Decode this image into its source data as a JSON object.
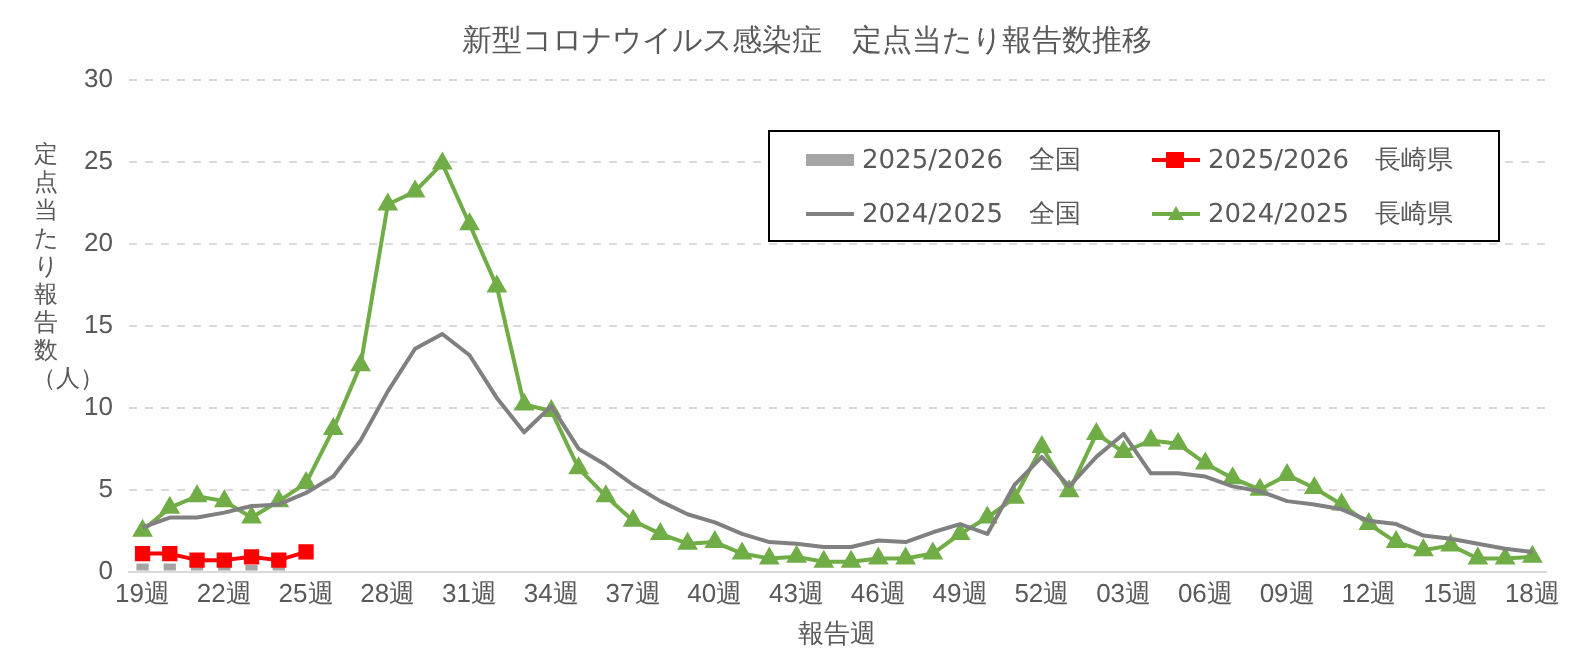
{
  "chart_data": {
    "type": "line",
    "title": "新型コロナウイルス感染症　定点当たり報告数推移",
    "xlabel": "報告週",
    "ylabel": "定点当たり報告数（人）",
    "categories": [
      "19週",
      null,
      null,
      "22週",
      null,
      null,
      "25週",
      null,
      null,
      "28週",
      null,
      null,
      "31週",
      null,
      null,
      "34週",
      null,
      null,
      "37週",
      null,
      null,
      "40週",
      null,
      null,
      "43週",
      null,
      null,
      "46週",
      null,
      null,
      "49週",
      null,
      null,
      "52週",
      null,
      null,
      "03週",
      null,
      null,
      "06週",
      null,
      null,
      "09週",
      null,
      null,
      "12週",
      null,
      null,
      "15週",
      null,
      null,
      "18週"
    ],
    "ylim": [
      0,
      30
    ],
    "yticks": [
      0,
      5,
      10,
      15,
      20,
      25,
      30
    ],
    "grid": "y",
    "legend": "top right",
    "series": [
      {
        "name": "2025/2026　全国",
        "type": "bar",
        "color": "#a5a5a5",
        "values": [
          0.5,
          0.5,
          0.4,
          0.4,
          0.4,
          0.4,
          null,
          null,
          null,
          null,
          null,
          null,
          null,
          null,
          null,
          null,
          null,
          null,
          null,
          null,
          null,
          null,
          null,
          null,
          null,
          null,
          null,
          null,
          null,
          null,
          null,
          null,
          null,
          null,
          null,
          null,
          null,
          null,
          null,
          null,
          null,
          null,
          null,
          null,
          null,
          null,
          null,
          null,
          null,
          null,
          null,
          null
        ]
      },
      {
        "name": "2025/2026　長崎県",
        "color": "#ff0000",
        "marker": "square",
        "values": [
          1.1,
          1.1,
          0.7,
          0.7,
          0.9,
          0.7,
          1.2,
          null,
          null,
          null,
          null,
          null,
          null,
          null,
          null,
          null,
          null,
          null,
          null,
          null,
          null,
          null,
          null,
          null,
          null,
          null,
          null,
          null,
          null,
          null,
          null,
          null,
          null,
          null,
          null,
          null,
          null,
          null,
          null,
          null,
          null,
          null,
          null,
          null,
          null,
          null,
          null,
          null,
          null,
          null,
          null,
          null
        ]
      },
      {
        "name": "2024/2025　全国",
        "color": "#808080",
        "marker": "none",
        "values": [
          2.7,
          3.3,
          3.3,
          3.6,
          4.0,
          4.1,
          4.8,
          5.8,
          8.0,
          11.0,
          13.6,
          14.5,
          13.2,
          10.6,
          8.5,
          10.1,
          7.5,
          6.5,
          5.3,
          4.3,
          3.5,
          3.0,
          2.3,
          1.8,
          1.7,
          1.5,
          1.5,
          1.9,
          1.8,
          2.4,
          2.9,
          2.3,
          5.3,
          7.0,
          5.2,
          7.0,
          8.4,
          6.0,
          6.0,
          5.8,
          5.2,
          4.9,
          4.3,
          4.1,
          3.8,
          3.1,
          2.9,
          2.2,
          2.0,
          1.7,
          1.4,
          1.2
        ]
      },
      {
        "name": "2024/2025　長崎県",
        "color": "#70ad47",
        "marker": "triangle",
        "values": [
          2.5,
          3.9,
          4.6,
          4.3,
          3.3,
          4.3,
          5.4,
          8.7,
          12.6,
          22.4,
          23.2,
          24.9,
          21.2,
          17.4,
          10.2,
          9.8,
          6.3,
          4.6,
          3.1,
          2.3,
          1.7,
          1.8,
          1.1,
          0.8,
          0.9,
          0.6,
          0.6,
          0.8,
          0.8,
          1.1,
          2.3,
          3.3,
          4.5,
          7.6,
          4.9,
          8.4,
          7.3,
          8.0,
          7.8,
          6.6,
          5.7,
          5.0,
          5.9,
          5.1,
          4.1,
          2.9,
          1.8,
          1.3,
          1.6,
          0.8,
          0.8,
          0.9
        ]
      }
    ]
  }
}
